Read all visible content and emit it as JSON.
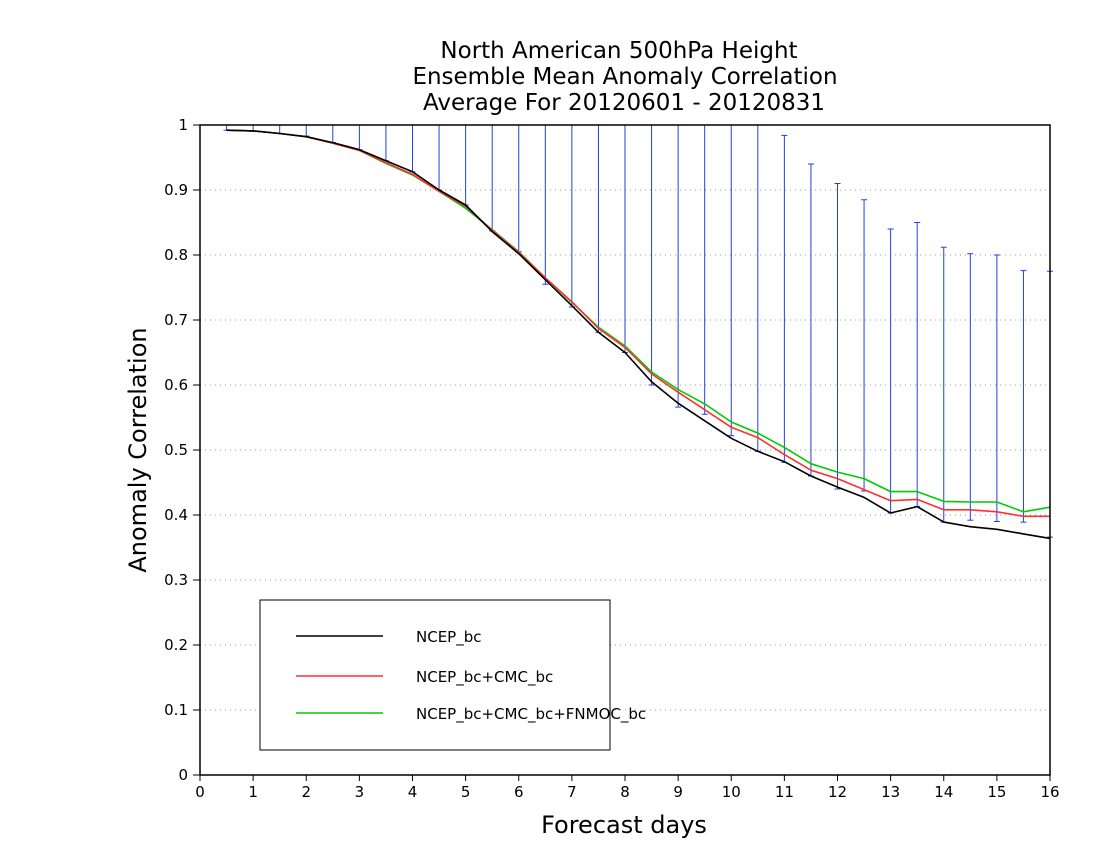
{
  "chart_data": {
    "type": "line",
    "title": [
      "North American 500hPa Height",
      "Ensemble Mean Anomaly Correlation",
      "Average For 20120601 - 20120831"
    ],
    "xlabel": "Forecast days",
    "ylabel": "Anomaly Correlation",
    "xlim": [
      0,
      16
    ],
    "ylim": [
      0,
      1
    ],
    "xticks": [
      "0",
      "1",
      "2",
      "3",
      "4",
      "5",
      "6",
      "7",
      "8",
      "9",
      "10",
      "11",
      "12",
      "13",
      "14",
      "15",
      "16"
    ],
    "yticks": [
      "0",
      "0.1",
      "0.2",
      "0.3",
      "0.4",
      "0.5",
      "0.6",
      "0.7",
      "0.8",
      "0.9",
      "1"
    ],
    "grid": true,
    "legend_position": "bottom-left",
    "x": [
      0.5,
      1,
      1.5,
      2,
      2.5,
      3,
      3.5,
      4,
      4.5,
      5,
      5.5,
      6,
      6.5,
      7,
      7.5,
      8,
      8.5,
      9,
      9.5,
      10,
      10.5,
      11,
      11.5,
      12,
      12.5,
      13,
      13.5,
      14,
      14.5,
      15,
      15.5,
      16
    ],
    "series": [
      {
        "name": "NCEP_bc",
        "color": "#000000",
        "values": [
          0.992,
          0.991,
          0.987,
          0.982,
          0.973,
          0.962,
          0.945,
          0.928,
          0.9,
          0.877,
          0.836,
          0.802,
          0.762,
          0.722,
          0.681,
          0.65,
          0.605,
          0.572,
          0.545,
          0.518,
          0.498,
          0.482,
          0.46,
          0.443,
          0.427,
          0.403,
          0.413,
          0.389,
          0.382,
          0.378,
          0.371,
          0.364
        ]
      },
      {
        "name": "NCEP_bc+CMC_bc",
        "color": "#ff3030",
        "values": [
          0.992,
          0.991,
          0.987,
          0.982,
          0.972,
          0.961,
          0.942,
          0.924,
          0.898,
          0.875,
          0.838,
          0.804,
          0.765,
          0.728,
          0.687,
          0.658,
          0.617,
          0.589,
          0.562,
          0.535,
          0.519,
          0.493,
          0.469,
          0.456,
          0.439,
          0.422,
          0.424,
          0.408,
          0.408,
          0.405,
          0.398,
          0.398
        ]
      },
      {
        "name": "NCEP_bc+CMC_bc+FNMOC_bc",
        "color": "#00cc00",
        "values": [
          0.992,
          0.991,
          0.987,
          0.982,
          0.972,
          0.961,
          0.941,
          0.923,
          0.898,
          0.872,
          0.839,
          0.805,
          0.765,
          0.727,
          0.689,
          0.66,
          0.62,
          0.593,
          0.571,
          0.543,
          0.526,
          0.504,
          0.479,
          0.466,
          0.456,
          0.436,
          0.436,
          0.421,
          0.42,
          0.42,
          0.405,
          0.412
        ]
      }
    ],
    "error_bars": {
      "color": "#2040e0",
      "x": [
        0.5,
        1,
        1.5,
        2,
        2.5,
        3,
        3.5,
        4,
        4.5,
        5,
        5.5,
        6,
        6.5,
        7,
        7.5,
        8,
        8.5,
        9,
        9.5,
        10,
        10.5,
        11,
        11.5,
        12,
        12.5,
        13,
        13.5,
        14,
        14.5,
        15,
        15.5,
        16
      ],
      "low": [
        0.992,
        0.99,
        0.987,
        0.983,
        0.973,
        0.962,
        0.945,
        0.928,
        0.9,
        0.877,
        0.837,
        0.805,
        0.755,
        0.72,
        0.681,
        0.65,
        0.6,
        0.566,
        0.555,
        0.522,
        0.498,
        0.481,
        0.46,
        0.44,
        0.437,
        0.403,
        0.413,
        0.389,
        0.392,
        0.39,
        0.389,
        0.366
      ],
      "high": [
        1,
        1,
        1,
        1,
        1,
        1,
        1,
        1,
        1,
        1,
        1,
        1,
        1,
        1,
        1,
        1,
        1,
        1,
        1,
        1,
        1,
        0.984,
        0.94,
        0.91,
        0.885,
        0.84,
        0.85,
        0.812,
        0.802,
        0.8,
        0.776,
        0.775
      ]
    }
  }
}
